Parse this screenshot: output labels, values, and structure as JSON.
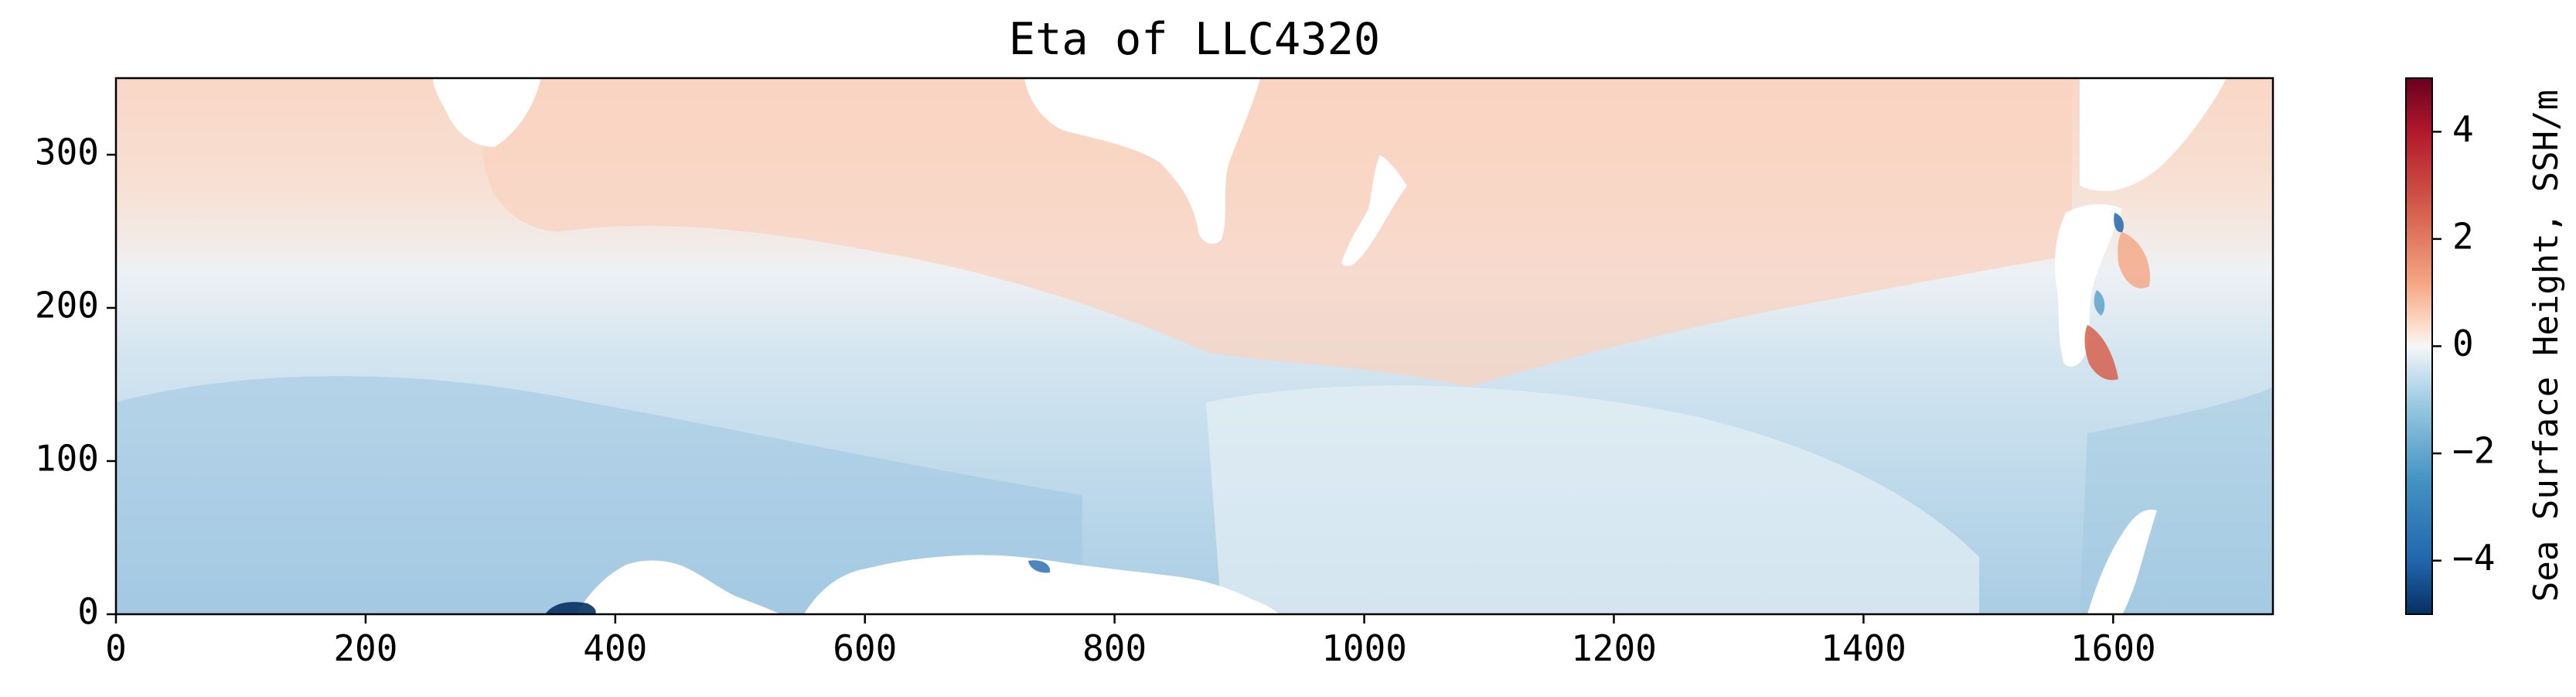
{
  "chart_data": {
    "type": "heatmap",
    "title": "Eta of LLC4320",
    "xlabel": "",
    "ylabel": "",
    "xlim": [
      0,
      1728
    ],
    "ylim": [
      0,
      350
    ],
    "x_ticks": [
      0,
      200,
      400,
      600,
      800,
      1000,
      1200,
      1400,
      1600
    ],
    "y_ticks": [
      0,
      100,
      200,
      300
    ],
    "x_tick_labels": [
      "0",
      "200",
      "400",
      "600",
      "800",
      "1000",
      "1200",
      "1400",
      "1600"
    ],
    "y_tick_labels": [
      "0",
      "100",
      "200",
      "300"
    ],
    "colorbar": {
      "label": "Sea Surface Height, SSH/m",
      "colormap": "RdBu_r",
      "range": [
        -5,
        5
      ],
      "ticks": [
        -4,
        -2,
        0,
        2,
        4
      ],
      "tick_labels": [
        "−4",
        "−2",
        "0",
        "2",
        "4"
      ]
    },
    "colors": {
      "strong_negative": "#053061",
      "negative": "#2166ac",
      "weak_negative": "#92c5de",
      "near_zero": "#f7f7f7",
      "weak_positive": "#f4a582",
      "positive": "#d6604d",
      "strong_positive": "#67001f",
      "land": "#ffffff"
    },
    "grid": false
  }
}
